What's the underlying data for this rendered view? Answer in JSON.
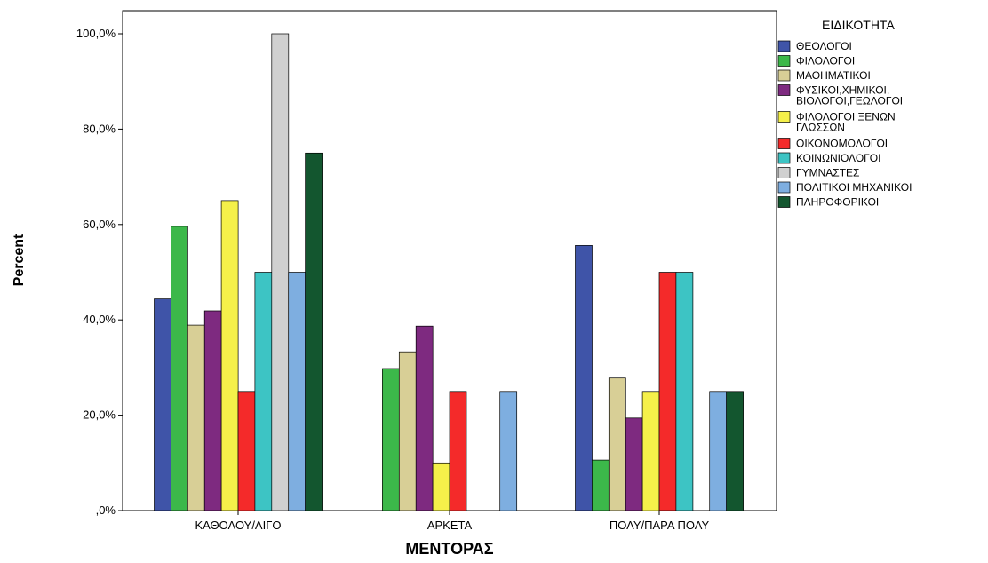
{
  "chart_data": {
    "type": "bar",
    "xlabel": "ΜΕΝΤΟΡΑΣ",
    "ylabel": "Percent",
    "ylim": [
      0,
      105
    ],
    "yticks": [
      0,
      20,
      40,
      60,
      80,
      100
    ],
    "ytick_labels": [
      ",0%",
      "20,0%",
      "40,0%",
      "60,0%",
      "80,0%",
      "100,0%"
    ],
    "categories": [
      "ΚΑΘΟΛΟΥ/ΛΙΓΟ",
      "ΑΡΚΕΤΑ",
      "ΠΟΛΥ/ΠΑΡΑ ΠΟΛΥ"
    ],
    "legend_title": "ΕΙΔΙΚΟΤΗΤΑ",
    "legend_position": "right",
    "grid": false,
    "series": [
      {
        "name": "ΘΕΟΛΟΓΟΙ",
        "label_lines": [
          "ΘΕΟΛΟΓΟΙ"
        ],
        "color": "#3f54a8",
        "values": [
          44.4,
          0,
          55.6
        ]
      },
      {
        "name": "ΦΙΛΟΛΟΓΟΙ",
        "label_lines": [
          "ΦΙΛΟΛΟΓΟΙ"
        ],
        "color": "#3cb84a",
        "values": [
          59.6,
          29.8,
          10.6
        ]
      },
      {
        "name": "ΜΑΘΗΜΑΤΙΚΟΙ",
        "label_lines": [
          "ΜΑΘΗΜΑΤΙΚΟΙ"
        ],
        "color": "#d8cf96",
        "values": [
          38.9,
          33.3,
          27.8
        ]
      },
      {
        "name": "ΦΥΣΙΚΟΙ,ΧΗΜΙΚΟΙ, ΒΙΟΛΟΓΟΙ,ΓΕΩΛΟΓΟΙ",
        "label_lines": [
          "ΦΥΣΙΚΟΙ,ΧΗΜΙΚΟΙ,",
          "ΒΙΟΛΟΓΟΙ,ΓΕΩΛΟΓΟΙ"
        ],
        "color": "#7e2a80",
        "values": [
          41.9,
          38.7,
          19.4
        ]
      },
      {
        "name": "ΦΙΛΟΛΟΓΟΙ ΞΕΝΩΝ ΓΛΩΣΣΩΝ",
        "label_lines": [
          "ΦΙΛΟΛΟΓΟΙ ΞΕΝΩΝ",
          "ΓΛΩΣΣΩΝ"
        ],
        "color": "#f5f04a",
        "values": [
          65.0,
          10.0,
          25.0
        ]
      },
      {
        "name": "ΟΙΚΟΝΟΜΟΛΟΓΟΙ",
        "label_lines": [
          "ΟΙΚΟΝΟΜΟΛΟΓΟΙ"
        ],
        "color": "#f42a2a",
        "values": [
          25.0,
          25.0,
          50.0
        ]
      },
      {
        "name": "ΚΟΙΝΩΝΙΟΛΟΓΟΙ",
        "label_lines": [
          "ΚΟΙΝΩΝΙΟΛΟΓΟΙ"
        ],
        "color": "#3dc4c4",
        "values": [
          50.0,
          0,
          50.0
        ]
      },
      {
        "name": "ΓΥΜΝΑΣΤΕΣ",
        "label_lines": [
          "ΓΥΜΝΑΣΤΕΣ"
        ],
        "color": "#d0d0d0",
        "values": [
          100.0,
          0,
          0
        ]
      },
      {
        "name": "ΠΟΛΙΤΙΚΟΙ ΜΗΧΑΝΙΚΟΙ",
        "label_lines": [
          "ΠΟΛΙΤΙΚΟΙ ΜΗΧΑΝΙΚΟΙ"
        ],
        "color": "#7eaee0",
        "values": [
          50.0,
          25.0,
          25.0
        ]
      },
      {
        "name": "ΠΛΗΡΟΦΟΡΙΚΟΙ",
        "label_lines": [
          "ΠΛΗΡΟΦΟΡΙΚΟΙ"
        ],
        "color": "#13562f",
        "values": [
          75.0,
          0,
          25.0
        ]
      }
    ]
  }
}
